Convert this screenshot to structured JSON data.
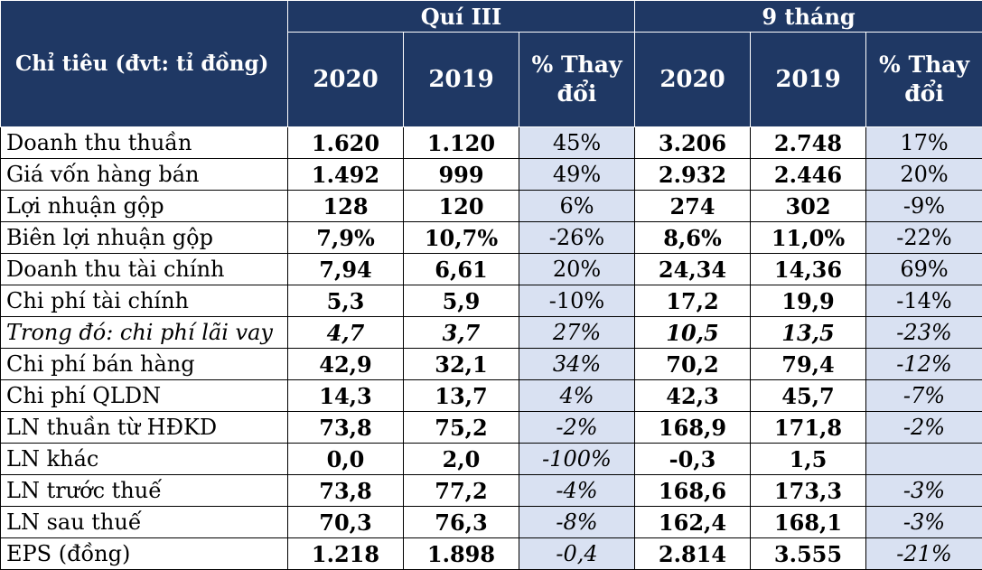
{
  "header": {
    "label": "Chỉ tiêu (đvt: tỉ đồng)",
    "group_quarter": "Quí III",
    "group_nine_months": "9 tháng",
    "year_2020": "2020",
    "year_2019": "2019",
    "change": "% Thay đổi"
  },
  "rows": [
    {
      "label": "Doanh thu thuần",
      "q2020": "1.620",
      "q2019": "1.120",
      "qchg": "45%",
      "m2020": "3.206",
      "m2019": "2.748",
      "mchg": "17%"
    },
    {
      "label": "Giá vốn hàng bán",
      "q2020": "1.492",
      "q2019": "999",
      "qchg": "49%",
      "m2020": "2.932",
      "m2019": "2.446",
      "mchg": "20%"
    },
    {
      "label": "Lợi nhuận gộp",
      "q2020": "128",
      "q2019": "120",
      "qchg": "6%",
      "m2020": "274",
      "m2019": "302",
      "mchg": "-9%"
    },
    {
      "label": "Biên lợi nhuận gộp",
      "q2020": "7,9%",
      "q2019": "10,7%",
      "qchg": "-26%",
      "m2020": "8,6%",
      "m2019": "11,0%",
      "mchg": "-22%"
    },
    {
      "label": "Doanh thu tài chính",
      "q2020": "7,94",
      "q2019": "6,61",
      "qchg": "20%",
      "m2020": "24,34",
      "m2019": "14,36",
      "mchg": "69%"
    },
    {
      "label": "Chi phí tài chính",
      "q2020": "5,3",
      "q2019": "5,9",
      "qchg": "-10%",
      "m2020": "17,2",
      "m2019": "19,9",
      "mchg": "-14%"
    },
    {
      "label": "Trong đó: chi phí lãi vay",
      "q2020": "4,7",
      "q2019": "3,7",
      "qchg": "27%",
      "m2020": "10,5",
      "m2019": "13,5",
      "mchg": "-23%"
    },
    {
      "label": "Chi phí bán hàng",
      "q2020": "42,9",
      "q2019": "32,1",
      "qchg": "34%",
      "m2020": "70,2",
      "m2019": "79,4",
      "mchg": "-12%"
    },
    {
      "label": "Chi phí QLDN",
      "q2020": "14,3",
      "q2019": "13,7",
      "qchg": "4%",
      "m2020": "42,3",
      "m2019": "45,7",
      "mchg": "-7%"
    },
    {
      "label": "LN thuần từ HĐKD",
      "q2020": "73,8",
      "q2019": "75,2",
      "qchg": "-2%",
      "m2020": "168,9",
      "m2019": "171,8",
      "mchg": "-2%"
    },
    {
      "label": "LN khác",
      "q2020": "0,0",
      "q2019": "2,0",
      "qchg": "-100%",
      "m2020": "-0,3",
      "m2019": "1,5",
      "mchg": ""
    },
    {
      "label": "LN trước thuế",
      "q2020": "73,8",
      "q2019": "77,2",
      "qchg": "-4%",
      "m2020": "168,6",
      "m2019": "173,3",
      "mchg": "-3%"
    },
    {
      "label": "LN sau thuế",
      "q2020": "70,3",
      "q2019": "76,3",
      "qchg": "-8%",
      "m2020": "162,4",
      "m2019": "168,1",
      "mchg": "-3%"
    },
    {
      "label": "EPS (đồng)",
      "q2020": "1.218",
      "q2019": "1.898",
      "qchg": "-0,4",
      "m2020": "2.814",
      "m2019": "3.555",
      "mchg": "-21%"
    }
  ],
  "colors": {
    "header_bg": "#1f3864",
    "change_cell_bg": "#d9e1f2"
  }
}
